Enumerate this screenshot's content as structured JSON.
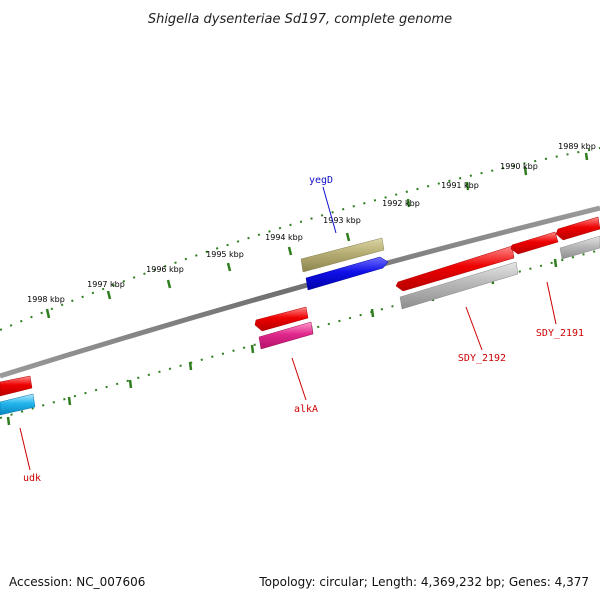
{
  "title": "Shigella dysenteriae Sd197, complete genome",
  "footer": {
    "accession": "Accession: NC_007606",
    "summary": "Topology: circular; Length: 4,369,232 bp; Genes: 4,377"
  },
  "scale_labels": [
    "1989 kbp",
    "1990 kbp",
    "1991 kbp",
    "1992 kbp",
    "1993 kbp",
    "1994 kbp",
    "1995 kbp",
    "1996 kbp",
    "1997 kbp",
    "1998 kbp"
  ],
  "gene_labels": {
    "yegD": "yegD",
    "alkA": "alkA",
    "SDY_2192": "SDY_2192",
    "SDY_2191": "SDY_2191",
    "udk": "udk"
  },
  "colors": {
    "backbone": "#7a7a7a",
    "tick": "#2e7d1e",
    "red": "#ee0000",
    "blue": "#1010e8",
    "olive": "#b5ad72",
    "grey": "#b8b8b8",
    "magenta": "#e0288c",
    "cyan": "#22b4ec",
    "label_red": "#cc0000",
    "label_blue": "#1010cc"
  }
}
